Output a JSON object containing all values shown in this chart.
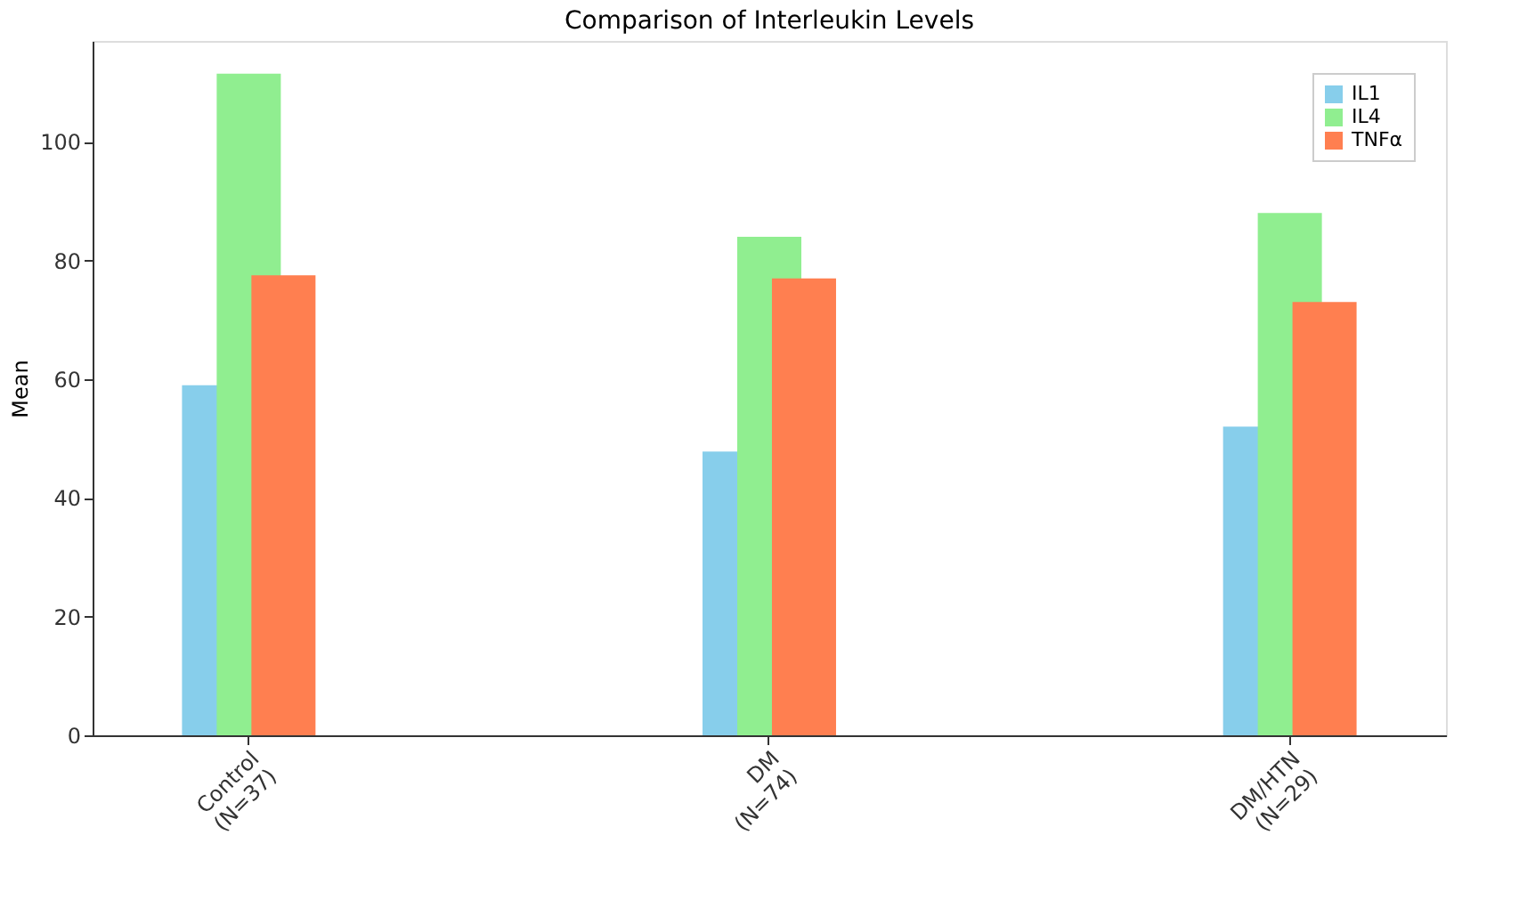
{
  "chart_data": {
    "type": "bar",
    "title": "Comparison of Interleukin Levels",
    "ylabel": "Mean",
    "categories": [
      "Control\n(N=37)",
      "DM\n(N=74)",
      "DM/HTN\n(N=29)"
    ],
    "series": [
      {
        "name": "IL1",
        "color": "#87ceeb",
        "values": [
          59,
          47.8,
          52
        ]
      },
      {
        "name": "IL4",
        "color": "#90ee90",
        "values": [
          111.5,
          84,
          88
        ]
      },
      {
        "name": "TNFα",
        "color": "#ff7f50",
        "values": [
          77.5,
          77,
          73
        ]
      }
    ],
    "ylim": [
      0,
      117
    ],
    "yticks": [
      0,
      20,
      40,
      60,
      80,
      100
    ],
    "grid": false,
    "legend": "top right"
  }
}
